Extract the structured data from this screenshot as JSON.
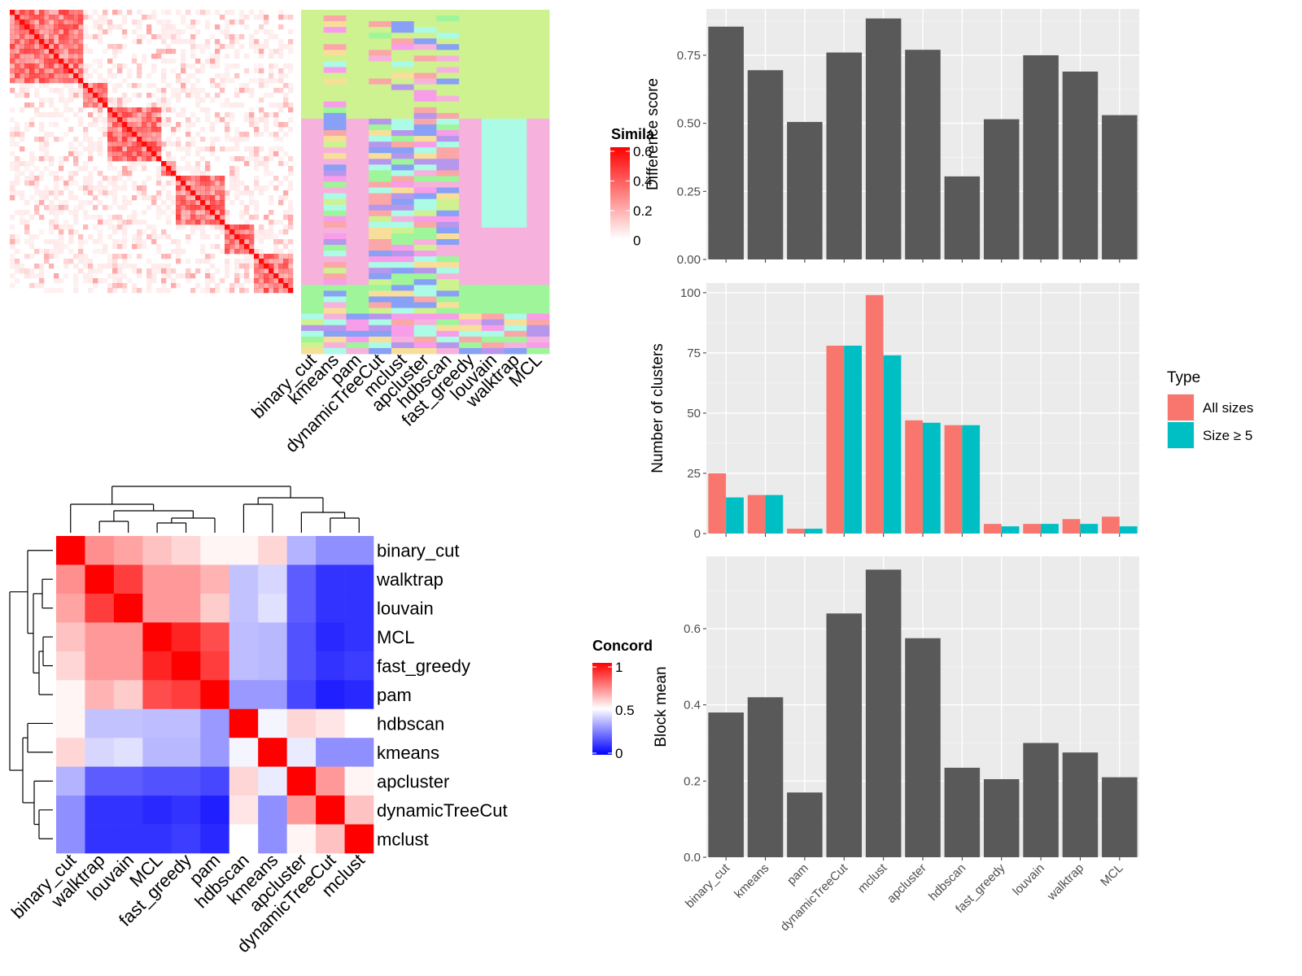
{
  "similarity_panel": {
    "legend_title": "Simila",
    "legend_ticks": [
      "0.6",
      "0.4",
      "0.2",
      "0"
    ],
    "legend_colors": [
      "#ffffff",
      "#ff0000"
    ],
    "column_labels": [
      "binary_cut",
      "kmeans",
      "pam",
      "dynamicTreeCut",
      "mclust",
      "apcluster",
      "hdbscan",
      "fast_greedy",
      "louvain",
      "walktrap",
      "MCL"
    ],
    "cluster_palette": [
      "#cdf28f",
      "#f6b2dc",
      "#abfbe6",
      "#9ff59a",
      "#f8df99",
      "#b697ec",
      "#88a0f5",
      "#f79de9",
      "#fba7a7"
    ]
  },
  "concordance_panel": {
    "legend_title": "Concord",
    "legend_ticks": [
      "1",
      "0.5",
      "0"
    ],
    "legend_colors": [
      "#0000ff",
      "#ffffff",
      "#ff0000"
    ]
  },
  "chart_data": [
    {
      "type": "heatmap",
      "title": "",
      "row_labels": [
        "binary_cut",
        "walktrap",
        "louvain",
        "MCL",
        "fast_greedy",
        "pam",
        "hdbscan",
        "kmeans",
        "apcluster",
        "dynamicTreeCut",
        "mclust"
      ],
      "col_labels": [
        "binary_cut",
        "walktrap",
        "louvain",
        "MCL",
        "fast_greedy",
        "pam",
        "hdbscan",
        "kmeans",
        "apcluster",
        "dynamicTreeCut",
        "mclust"
      ],
      "scale": [
        0,
        1
      ],
      "values": [
        [
          1.0,
          0.72,
          0.68,
          0.62,
          0.58,
          0.52,
          0.52,
          0.58,
          0.35,
          0.28,
          0.28
        ],
        [
          0.72,
          1.0,
          0.88,
          0.7,
          0.7,
          0.65,
          0.38,
          0.42,
          0.18,
          0.1,
          0.1
        ],
        [
          0.68,
          0.88,
          1.0,
          0.7,
          0.7,
          0.6,
          0.38,
          0.44,
          0.18,
          0.1,
          0.1
        ],
        [
          0.62,
          0.7,
          0.7,
          1.0,
          0.93,
          0.85,
          0.37,
          0.36,
          0.16,
          0.08,
          0.1
        ],
        [
          0.58,
          0.7,
          0.7,
          0.93,
          1.0,
          0.88,
          0.37,
          0.36,
          0.16,
          0.1,
          0.12
        ],
        [
          0.52,
          0.65,
          0.6,
          0.85,
          0.88,
          1.0,
          0.3,
          0.3,
          0.14,
          0.06,
          0.08
        ],
        [
          0.52,
          0.38,
          0.38,
          0.37,
          0.37,
          0.3,
          1.0,
          0.48,
          0.58,
          0.55,
          0.5
        ],
        [
          0.58,
          0.42,
          0.44,
          0.36,
          0.36,
          0.3,
          0.48,
          1.0,
          0.46,
          0.28,
          0.28
        ],
        [
          0.35,
          0.18,
          0.18,
          0.16,
          0.16,
          0.14,
          0.58,
          0.46,
          1.0,
          0.7,
          0.52
        ],
        [
          0.28,
          0.1,
          0.1,
          0.08,
          0.1,
          0.06,
          0.55,
          0.28,
          0.7,
          1.0,
          0.62
        ],
        [
          0.28,
          0.1,
          0.1,
          0.1,
          0.12,
          0.08,
          0.5,
          0.28,
          0.52,
          0.62,
          1.0
        ]
      ]
    },
    {
      "type": "bar",
      "title": "",
      "xlabel": "",
      "ylabel": "Difference score",
      "categories": [
        "binary_cut",
        "kmeans",
        "pam",
        "dynamicTreeCut",
        "mclust",
        "apcluster",
        "hdbscan",
        "fast_greedy",
        "louvain",
        "walktrap",
        "MCL"
      ],
      "values": [
        0.855,
        0.695,
        0.505,
        0.76,
        0.885,
        0.77,
        0.305,
        0.515,
        0.75,
        0.69,
        0.53
      ],
      "yticks": [
        "0.00",
        "0.25",
        "0.50",
        "0.75"
      ],
      "ylim": [
        0,
        0.92
      ]
    },
    {
      "type": "bar",
      "title": "",
      "xlabel": "",
      "ylabel": "Number of clusters",
      "categories": [
        "binary_cut",
        "kmeans",
        "pam",
        "dynamicTreeCut",
        "mclust",
        "apcluster",
        "hdbscan",
        "fast_greedy",
        "louvain",
        "walktrap",
        "MCL"
      ],
      "series": [
        {
          "name": "All sizes",
          "color": "#f8766d",
          "values": [
            25,
            16,
            2,
            78,
            99,
            47,
            45,
            4,
            4,
            6,
            7
          ]
        },
        {
          "name": "Size ≥ 5",
          "color": "#00bfc4",
          "values": [
            15,
            16,
            2,
            78,
            74,
            46,
            45,
            3,
            4,
            4,
            3
          ]
        }
      ],
      "legend_title": "Type",
      "legend_position": "right",
      "yticks": [
        "0",
        "25",
        "50",
        "75",
        "100"
      ],
      "ylim": [
        0,
        104
      ]
    },
    {
      "type": "bar",
      "title": "",
      "xlabel": "",
      "ylabel": "Block mean",
      "categories": [
        "binary_cut",
        "kmeans",
        "pam",
        "dynamicTreeCut",
        "mclust",
        "apcluster",
        "hdbscan",
        "fast_greedy",
        "louvain",
        "walktrap",
        "MCL"
      ],
      "values": [
        0.38,
        0.42,
        0.17,
        0.64,
        0.755,
        0.575,
        0.235,
        0.205,
        0.3,
        0.275,
        0.21
      ],
      "yticks": [
        "0.0",
        "0.2",
        "0.4",
        "0.6"
      ],
      "ylim": [
        0,
        0.79
      ]
    }
  ]
}
